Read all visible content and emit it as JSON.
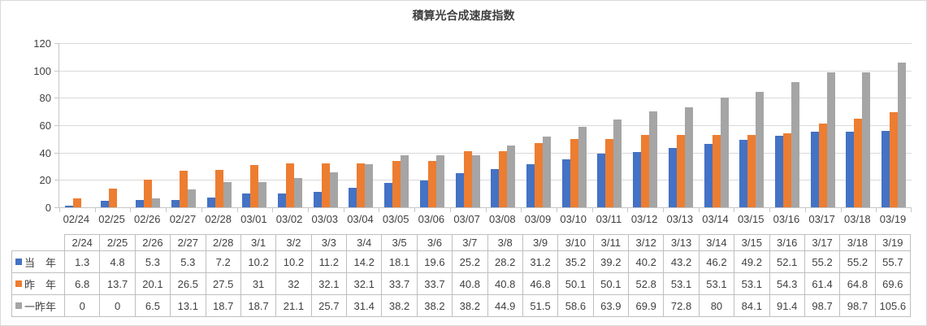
{
  "chart_data": {
    "type": "bar",
    "title": "積算光合成速度指数",
    "xlabel": "",
    "ylabel": "",
    "ylim": [
      0,
      120
    ],
    "y_ticks": [
      0,
      20,
      40,
      60,
      80,
      100,
      120
    ],
    "grid": true,
    "legend_position": "data-table-left",
    "categories": [
      "02/24",
      "02/25",
      "02/26",
      "02/27",
      "02/28",
      "03/01",
      "03/02",
      "03/03",
      "03/04",
      "03/05",
      "03/06",
      "03/07",
      "03/08",
      "03/09",
      "03/10",
      "03/11",
      "03/12",
      "03/13",
      "03/14",
      "03/15",
      "03/16",
      "03/17",
      "03/18",
      "03/19"
    ],
    "series": [
      {
        "key": "current-year",
        "name": "当　年",
        "color": "#4472C4",
        "values": [
          1.3,
          4.8,
          5.3,
          5.3,
          7.2,
          10.2,
          10.2,
          11.2,
          14.2,
          18.1,
          19.6,
          25.2,
          28.2,
          31.2,
          35.2,
          39.2,
          40.2,
          43.2,
          46.2,
          49.2,
          52.1,
          55.2,
          55.2,
          55.7
        ]
      },
      {
        "key": "last-year",
        "name": "昨　年",
        "color": "#ED7D31",
        "values": [
          6.8,
          13.7,
          20.1,
          26.5,
          27.5,
          31,
          32,
          32.1,
          32.1,
          33.7,
          33.7,
          40.8,
          40.8,
          46.8,
          50.1,
          50.1,
          52.8,
          53.1,
          53.1,
          53.1,
          54.3,
          61.4,
          64.8,
          69.6
        ]
      },
      {
        "key": "two-years-ago",
        "name": "一昨年",
        "color": "#A5A5A5",
        "values": [
          0,
          0,
          6.5,
          13.1,
          18.7,
          18.7,
          21.1,
          25.7,
          31.4,
          38.2,
          38.2,
          38.2,
          44.9,
          51.5,
          58.6,
          63.9,
          69.9,
          72.8,
          80,
          84.1,
          91.4,
          98.7,
          98.7,
          105.6
        ]
      }
    ]
  },
  "data_table": {
    "header_dates": [
      "2/24",
      "2/25",
      "2/26",
      "2/27",
      "2/28",
      "3/1",
      "3/2",
      "3/3",
      "3/4",
      "3/5",
      "3/6",
      "3/7",
      "3/8",
      "3/9",
      "3/10",
      "3/11",
      "3/12",
      "3/13",
      "3/14",
      "3/15",
      "3/16",
      "3/17",
      "3/18",
      "3/19"
    ]
  },
  "colors": {
    "gridline": "#D9D9D9",
    "axis_line": "#C6C6C6",
    "table_border": "#BFBFBF",
    "text": "#404040"
  }
}
